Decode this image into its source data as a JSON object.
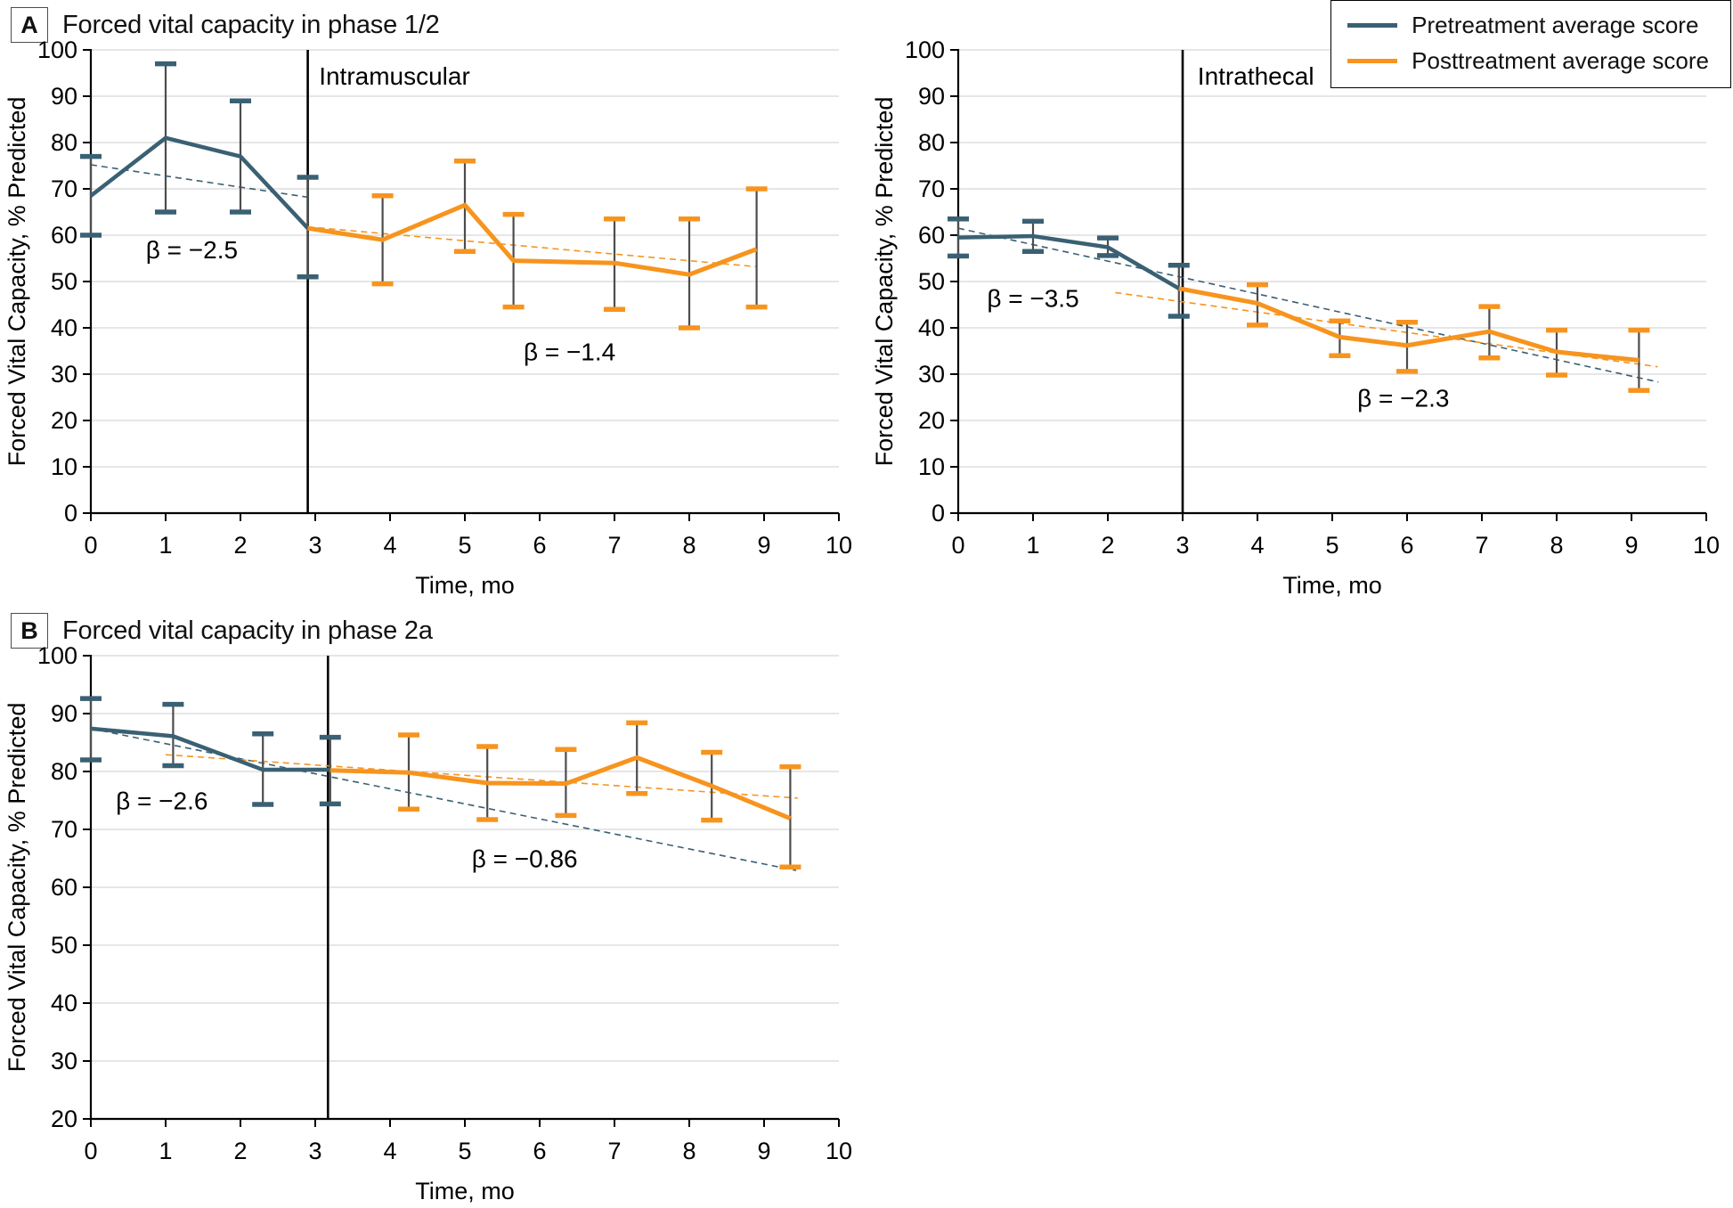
{
  "panels": [
    {
      "label": "A",
      "title": "Forced vital capacity in phase 1/2"
    },
    {
      "label": "B",
      "title": "Forced vital capacity in phase 2a"
    }
  ],
  "legend": {
    "items": [
      {
        "label": "Pretreatment average score",
        "color": "#3A6073"
      },
      {
        "label": "Posttreatment average score",
        "color": "#F7941E"
      }
    ]
  },
  "colors": {
    "pre": "#3A6073",
    "post": "#F7941E",
    "grid": "#E3E3E3",
    "stem": "#4D4D4D",
    "axis": "#000000"
  },
  "chart_data": [
    {
      "id": "phase12-intramuscular",
      "type": "line",
      "panel": "A",
      "group_label": "Intramuscular",
      "group_label_x": 3.05,
      "group_label_y": 92.5,
      "xlabel": "Time, mo",
      "ylabel": "Forced Vital Capacity, % Predicted",
      "xlim": [
        0,
        10
      ],
      "xticks": [
        0,
        1,
        2,
        3,
        4,
        5,
        6,
        7,
        8,
        9,
        10
      ],
      "ylim": [
        0,
        100
      ],
      "ytick_step": 10,
      "divider_x": 2.9,
      "series": [
        {
          "name": "Pretreatment average score",
          "color_key": "pre",
          "points": [
            {
              "x": 0,
              "y": 68.5,
              "lo": 60,
              "hi": 77
            },
            {
              "x": 1,
              "y": 81,
              "lo": 65,
              "hi": 97
            },
            {
              "x": 2,
              "y": 77,
              "lo": 65,
              "hi": 89
            },
            {
              "x": 2.9,
              "y": 61.5,
              "lo": 51,
              "hi": 72.5
            }
          ]
        },
        {
          "name": "Posttreatment average score",
          "color_key": "post",
          "points": [
            {
              "x": 2.9,
              "y": 61.5
            },
            {
              "x": 3.9,
              "y": 59,
              "lo": 49.5,
              "hi": 68.5
            },
            {
              "x": 5,
              "y": 66.5,
              "lo": 56.5,
              "hi": 76
            },
            {
              "x": 5.65,
              "y": 54.5,
              "lo": 44.5,
              "hi": 64.5
            },
            {
              "x": 7,
              "y": 54,
              "lo": 44,
              "hi": 63.5
            },
            {
              "x": 8,
              "y": 51.5,
              "lo": 40,
              "hi": 63.5
            },
            {
              "x": 8.9,
              "y": 57,
              "lo": 44.5,
              "hi": 70
            }
          ]
        }
      ],
      "trend_lines": [
        {
          "color_key": "pre",
          "x1": 0,
          "y1": 75.2,
          "x2": 2.9,
          "y2": 68.2
        },
        {
          "color_key": "post",
          "x1": 2.9,
          "y1": 61.8,
          "x2": 8.9,
          "y2": 53.2
        }
      ],
      "annotations": [
        {
          "text": "β = −2.5",
          "x": 1.35,
          "y": 55
        },
        {
          "text": "β = −1.4",
          "x": 6.4,
          "y": 33
        }
      ]
    },
    {
      "id": "phase12-intrathecal",
      "type": "line",
      "panel": "A",
      "group_label": "Intrathecal",
      "group_label_x": 3.2,
      "group_label_y": 92.5,
      "xlabel": "Time, mo",
      "ylabel": "Forced Vital Capacity, % Predicted",
      "xlim": [
        0,
        10
      ],
      "xticks": [
        0,
        1,
        2,
        3,
        4,
        5,
        6,
        7,
        8,
        9,
        10
      ],
      "ylim": [
        0,
        100
      ],
      "ytick_step": 10,
      "divider_x": 3,
      "series": [
        {
          "name": "Pretreatment average score",
          "color_key": "pre",
          "points": [
            {
              "x": 0,
              "y": 59.5,
              "lo": 55.5,
              "hi": 63.5
            },
            {
              "x": 1,
              "y": 59.8,
              "lo": 56.5,
              "hi": 63
            },
            {
              "x": 2,
              "y": 57.4,
              "lo": 55.6,
              "hi": 59.4
            },
            {
              "x": 2.95,
              "y": 48.5,
              "lo": 42.5,
              "hi": 53.5
            }
          ]
        },
        {
          "name": "Posttreatment average score",
          "color_key": "post",
          "points": [
            {
              "x": 2.95,
              "y": 48.5
            },
            {
              "x": 4,
              "y": 45.3,
              "lo": 40.6,
              "hi": 49.3
            },
            {
              "x": 5.1,
              "y": 38,
              "lo": 34,
              "hi": 41.5
            },
            {
              "x": 6,
              "y": 36.2,
              "lo": 30.6,
              "hi": 41.2
            },
            {
              "x": 7.1,
              "y": 39.2,
              "lo": 33.5,
              "hi": 44.6
            },
            {
              "x": 8,
              "y": 34.8,
              "lo": 29.8,
              "hi": 39.5
            },
            {
              "x": 9.1,
              "y": 33,
              "lo": 26.5,
              "hi": 39.5
            }
          ]
        }
      ],
      "trend_lines": [
        {
          "color_key": "pre",
          "x1": 0,
          "y1": 61.5,
          "x2": 9.36,
          "y2": 28.3
        },
        {
          "color_key": "post",
          "x1": 2.1,
          "y1": 47.6,
          "x2": 9.35,
          "y2": 31.6
        }
      ],
      "annotations": [
        {
          "text": "β = −3.5",
          "x": 1.0,
          "y": 44.5
        },
        {
          "text": "β = −2.3",
          "x": 5.95,
          "y": 23
        }
      ]
    },
    {
      "id": "phase2a",
      "type": "line",
      "panel": "B",
      "group_label": "",
      "group_label_x": 0,
      "group_label_y": 0,
      "xlabel": "Time, mo",
      "ylabel": "Forced Vital Capacity, % Predicted",
      "xlim": [
        0,
        10
      ],
      "xticks": [
        0,
        1,
        2,
        3,
        4,
        5,
        6,
        7,
        8,
        9,
        10
      ],
      "ylim": [
        20,
        100
      ],
      "ytick_step": 10,
      "divider_x": 3.17,
      "series": [
        {
          "name": "Pretreatment average score",
          "color_key": "pre",
          "points": [
            {
              "x": 0,
              "y": 87.4,
              "lo": 82,
              "hi": 92.6
            },
            {
              "x": 1.1,
              "y": 86.1,
              "lo": 81,
              "hi": 91.6
            },
            {
              "x": 2.3,
              "y": 80.3,
              "lo": 74.3,
              "hi": 86.5
            },
            {
              "x": 3.2,
              "y": 80.3,
              "lo": 74.4,
              "hi": 85.9
            }
          ]
        },
        {
          "name": "Posttreatment average score",
          "color_key": "post",
          "points": [
            {
              "x": 3.2,
              "y": 80.2
            },
            {
              "x": 4.25,
              "y": 79.8,
              "lo": 73.5,
              "hi": 86.3
            },
            {
              "x": 5.3,
              "y": 78,
              "lo": 71.7,
              "hi": 84.3
            },
            {
              "x": 6.35,
              "y": 77.9,
              "lo": 72.4,
              "hi": 83.8
            },
            {
              "x": 7.3,
              "y": 82.4,
              "lo": 76.2,
              "hi": 88.4
            },
            {
              "x": 8.3,
              "y": 77.5,
              "lo": 71.6,
              "hi": 83.3
            },
            {
              "x": 9.35,
              "y": 71.9,
              "lo": 63.5,
              "hi": 80.8
            }
          ]
        }
      ],
      "trend_lines": [
        {
          "color_key": "pre",
          "x1": 0,
          "y1": 87.4,
          "x2": 9.43,
          "y2": 62.9
        },
        {
          "color_key": "post",
          "x1": 1.0,
          "y1": 82.9,
          "x2": 9.45,
          "y2": 75.4
        }
      ],
      "annotations": [
        {
          "text": "β = −2.6",
          "x": 0.95,
          "y": 73.5
        },
        {
          "text": "β = −0.86",
          "x": 5.8,
          "y": 63.5
        }
      ]
    }
  ]
}
